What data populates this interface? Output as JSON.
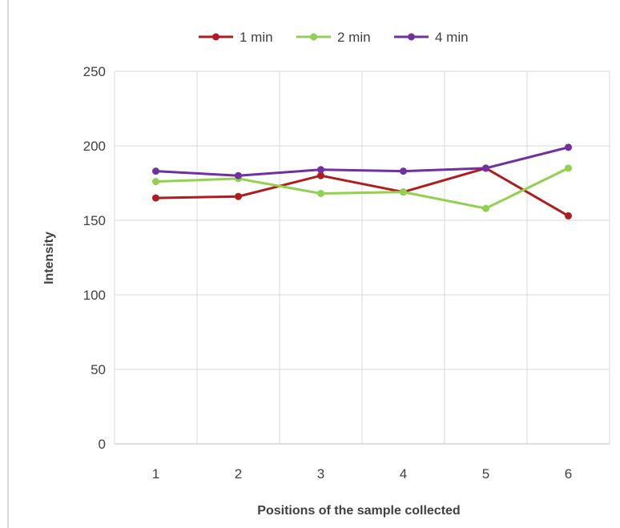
{
  "chart_data": {
    "type": "line",
    "title": "",
    "xlabel": "Positions of the sample collected",
    "ylabel": "Intensity",
    "categories": [
      "1",
      "2",
      "3",
      "4",
      "5",
      "6"
    ],
    "ylim": [
      0,
      250
    ],
    "yticks": [
      "0",
      "50",
      "100",
      "150",
      "200",
      "250"
    ],
    "grid": true,
    "legend_position": "top",
    "series": [
      {
        "name": "1 min",
        "color": "#b01c1c",
        "values": [
          165,
          166,
          180,
          169,
          185,
          153
        ]
      },
      {
        "name": "2 min",
        "color": "#92d050",
        "values": [
          176,
          178,
          168,
          169,
          158,
          185
        ]
      },
      {
        "name": "4 min",
        "color": "#7030a0",
        "values": [
          183,
          180,
          184,
          183,
          185,
          199
        ]
      }
    ]
  }
}
